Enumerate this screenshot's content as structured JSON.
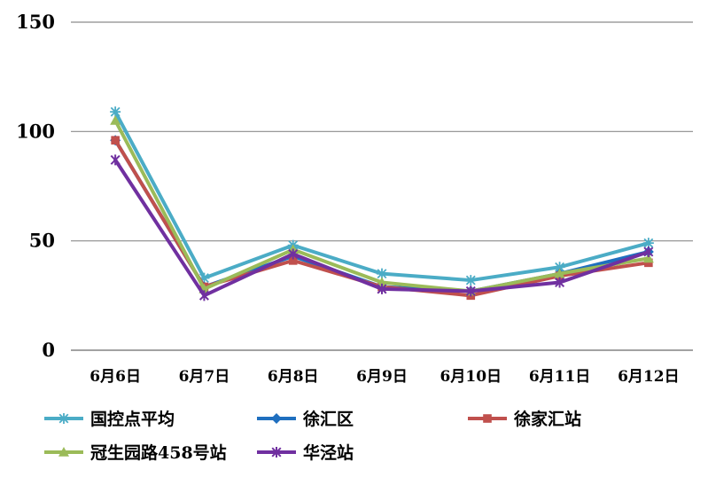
{
  "chart_data": {
    "type": "line",
    "title": "",
    "xlabel": "",
    "ylabel": "",
    "categories": [
      "6月6日",
      "6月7日",
      "6月8日",
      "6月9日",
      "6月10日",
      "6月11日",
      "6月12日"
    ],
    "ylim": [
      0,
      150
    ],
    "yticks": [
      0,
      50,
      100,
      150
    ],
    "grid": true,
    "legend": "bottom",
    "series": [
      {
        "name": "国控点平均",
        "color": "#4bacc6",
        "marker": "asterisk",
        "values": [
          109,
          33,
          48,
          35,
          32,
          38,
          49
        ]
      },
      {
        "name": "徐汇区",
        "color": "#1f6fbf",
        "marker": "diamond",
        "values": [
          96,
          29,
          43,
          29,
          27,
          35,
          45
        ]
      },
      {
        "name": "徐家汇站",
        "color": "#c0504d",
        "marker": "square",
        "values": [
          96,
          29,
          41,
          29,
          25,
          34,
          40
        ]
      },
      {
        "name": "冠生园路458号站",
        "color": "#9bbb59",
        "marker": "triangle",
        "values": [
          105,
          28,
          46,
          31,
          27,
          35,
          42
        ]
      },
      {
        "name": "华泾站",
        "color": "#7030a0",
        "marker": "star",
        "values": [
          87,
          25,
          44,
          28,
          27,
          31,
          45
        ]
      }
    ]
  }
}
